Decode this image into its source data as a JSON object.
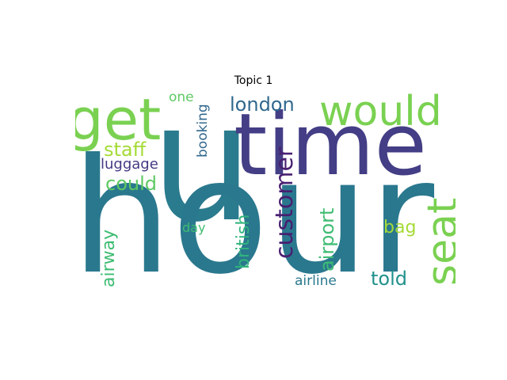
{
  "title": "Topic 1",
  "words": [
    {
      "text": "u",
      "color": "#2a7b8e"
    },
    {
      "text": "hour",
      "color": "#2a788e"
    },
    {
      "text": "time",
      "color": "#433e85"
    },
    {
      "text": "get",
      "color": "#7ad151"
    },
    {
      "text": "would",
      "color": "#7ad151"
    },
    {
      "text": "seat",
      "color": "#7ad151"
    },
    {
      "text": "customer",
      "color": "#481f70"
    },
    {
      "text": "london",
      "color": "#31688e"
    },
    {
      "text": "airport",
      "color": "#3fbc73"
    },
    {
      "text": "british",
      "color": "#2fb47c"
    },
    {
      "text": "airway",
      "color": "#3fbc73"
    },
    {
      "text": "could",
      "color": "#5ec962"
    },
    {
      "text": "staff",
      "color": "#a5db36"
    },
    {
      "text": "luggage",
      "color": "#443983"
    },
    {
      "text": "booking",
      "color": "#31688e"
    },
    {
      "text": "one",
      "color": "#5ec962"
    },
    {
      "text": "bag",
      "color": "#a5db36"
    },
    {
      "text": "told",
      "color": "#21918c"
    },
    {
      "text": "day",
      "color": "#3fbc73"
    },
    {
      "text": "airline",
      "color": "#2a788e"
    }
  ]
}
